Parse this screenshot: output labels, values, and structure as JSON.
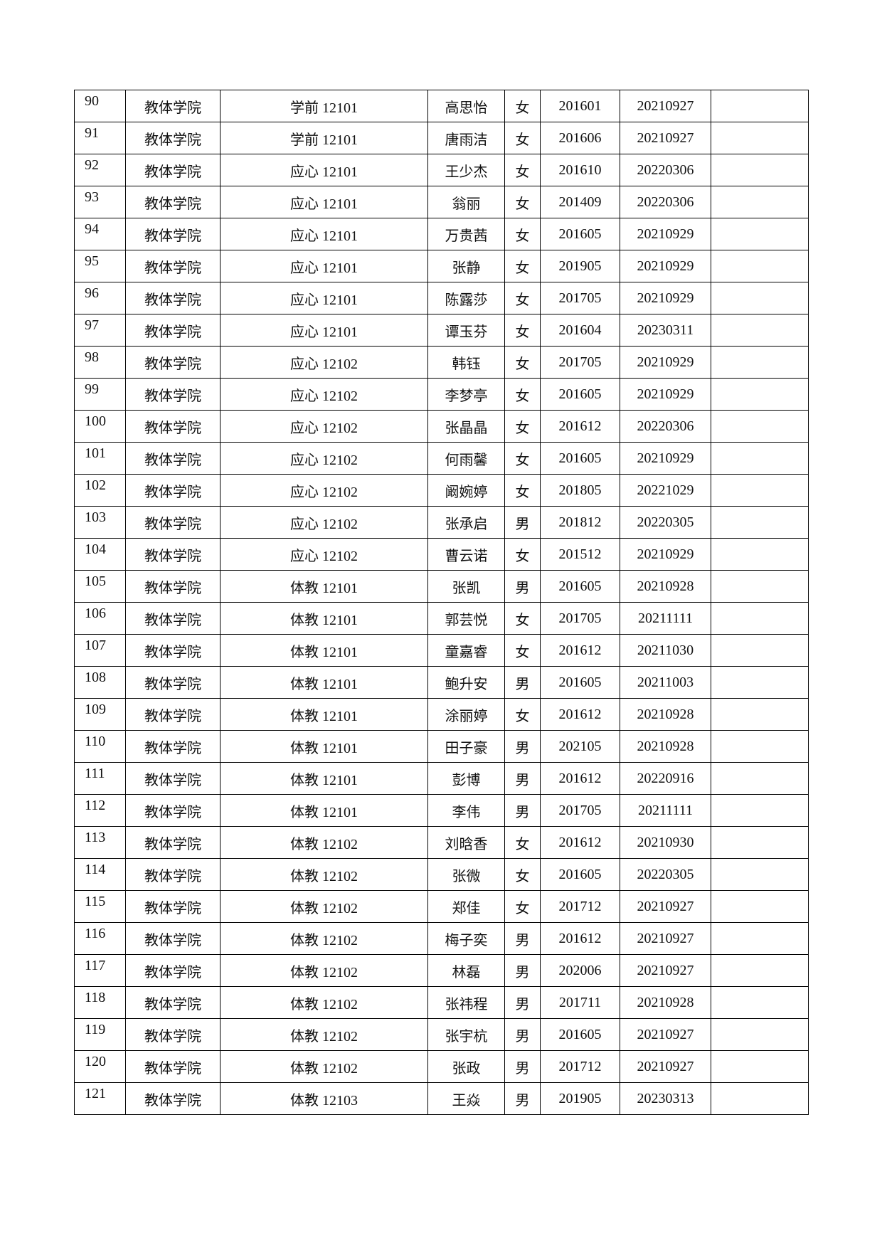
{
  "table": {
    "rows": [
      [
        "90",
        "教体学院",
        "学前 12101",
        "高思怡",
        "女",
        "201601",
        "20210927",
        ""
      ],
      [
        "91",
        "教体学院",
        "学前 12101",
        "唐雨洁",
        "女",
        "201606",
        "20210927",
        ""
      ],
      [
        "92",
        "教体学院",
        "应心 12101",
        "王少杰",
        "女",
        "201610",
        "20220306",
        ""
      ],
      [
        "93",
        "教体学院",
        "应心 12101",
        "翁丽",
        "女",
        "201409",
        "20220306",
        ""
      ],
      [
        "94",
        "教体学院",
        "应心 12101",
        "万贵茜",
        "女",
        "201605",
        "20210929",
        ""
      ],
      [
        "95",
        "教体学院",
        "应心 12101",
        "张静",
        "女",
        "201905",
        "20210929",
        ""
      ],
      [
        "96",
        "教体学院",
        "应心 12101",
        "陈露莎",
        "女",
        "201705",
        "20210929",
        ""
      ],
      [
        "97",
        "教体学院",
        "应心 12101",
        "谭玉芬",
        "女",
        "201604",
        "20230311",
        ""
      ],
      [
        "98",
        "教体学院",
        "应心 12102",
        "韩钰",
        "女",
        "201705",
        "20210929",
        ""
      ],
      [
        "99",
        "教体学院",
        "应心 12102",
        "李梦亭",
        "女",
        "201605",
        "20210929",
        ""
      ],
      [
        "100",
        "教体学院",
        "应心 12102",
        "张晶晶",
        "女",
        "201612",
        "20220306",
        ""
      ],
      [
        "101",
        "教体学院",
        "应心 12102",
        "何雨馨",
        "女",
        "201605",
        "20210929",
        ""
      ],
      [
        "102",
        "教体学院",
        "应心 12102",
        "阚婉婷",
        "女",
        "201805",
        "20221029",
        ""
      ],
      [
        "103",
        "教体学院",
        "应心 12102",
        "张承启",
        "男",
        "201812",
        "20220305",
        ""
      ],
      [
        "104",
        "教体学院",
        "应心 12102",
        "曹云诺",
        "女",
        "201512",
        "20210929",
        ""
      ],
      [
        "105",
        "教体学院",
        "体教 12101",
        "张凯",
        "男",
        "201605",
        "20210928",
        ""
      ],
      [
        "106",
        "教体学院",
        "体教 12101",
        "郭芸悦",
        "女",
        "201705",
        "20211111",
        ""
      ],
      [
        "107",
        "教体学院",
        "体教 12101",
        "童嘉睿",
        "女",
        "201612",
        "20211030",
        ""
      ],
      [
        "108",
        "教体学院",
        "体教 12101",
        "鲍升安",
        "男",
        "201605",
        "20211003",
        ""
      ],
      [
        "109",
        "教体学院",
        "体教 12101",
        "涂丽婷",
        "女",
        "201612",
        "20210928",
        ""
      ],
      [
        "110",
        "教体学院",
        "体教 12101",
        "田子豪",
        "男",
        "202105",
        "20210928",
        ""
      ],
      [
        "111",
        "教体学院",
        "体教 12101",
        "彭博",
        "男",
        "201612",
        "20220916",
        ""
      ],
      [
        "112",
        "教体学院",
        "体教 12101",
        "李伟",
        "男",
        "201705",
        "20211111",
        ""
      ],
      [
        "113",
        "教体学院",
        "体教 12102",
        "刘晗香",
        "女",
        "201612",
        "20210930",
        ""
      ],
      [
        "114",
        "教体学院",
        "体教 12102",
        "张微",
        "女",
        "201605",
        "20220305",
        ""
      ],
      [
        "115",
        "教体学院",
        "体教 12102",
        "郑佳",
        "女",
        "201712",
        "20210927",
        ""
      ],
      [
        "116",
        "教体学院",
        "体教 12102",
        "梅子奕",
        "男",
        "201612",
        "20210927",
        ""
      ],
      [
        "117",
        "教体学院",
        "体教 12102",
        "林磊",
        "男",
        "202006",
        "20210927",
        ""
      ],
      [
        "118",
        "教体学院",
        "体教 12102",
        "张祎程",
        "男",
        "201711",
        "20210928",
        ""
      ],
      [
        "119",
        "教体学院",
        "体教 12102",
        "张宇杭",
        "男",
        "201605",
        "20210927",
        ""
      ],
      [
        "120",
        "教体学院",
        "体教 12102",
        "张政",
        "男",
        "201712",
        "20210927",
        ""
      ],
      [
        "121",
        "教体学院",
        "体教 12103",
        "王焱",
        "男",
        "201905",
        "20230313",
        ""
      ]
    ]
  }
}
